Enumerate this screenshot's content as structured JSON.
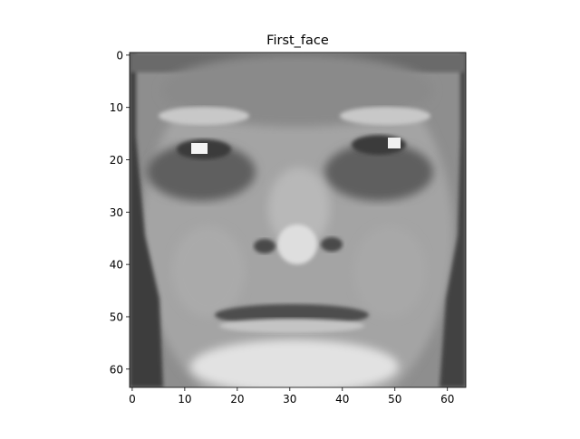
{
  "chart_data": {
    "type": "heatmap",
    "title": "First_face",
    "xlabel": "",
    "ylabel": "",
    "colormap": "gray",
    "grid": false,
    "legend": "none",
    "xlim": [
      -0.5,
      63.5
    ],
    "ylim": [
      63.5,
      -0.5
    ],
    "xticks": [
      0,
      10,
      20,
      30,
      40,
      50,
      60
    ],
    "yticks": [
      0,
      10,
      20,
      30,
      40,
      50,
      60
    ],
    "xtick_labels": [
      "0",
      "10",
      "20",
      "30",
      "40",
      "50",
      "60"
    ],
    "ytick_labels": [
      "0",
      "10",
      "20",
      "30",
      "40",
      "50",
      "60"
    ],
    "image_shape": [
      64,
      64
    ],
    "image_description": "64x64 grayscale face image"
  }
}
